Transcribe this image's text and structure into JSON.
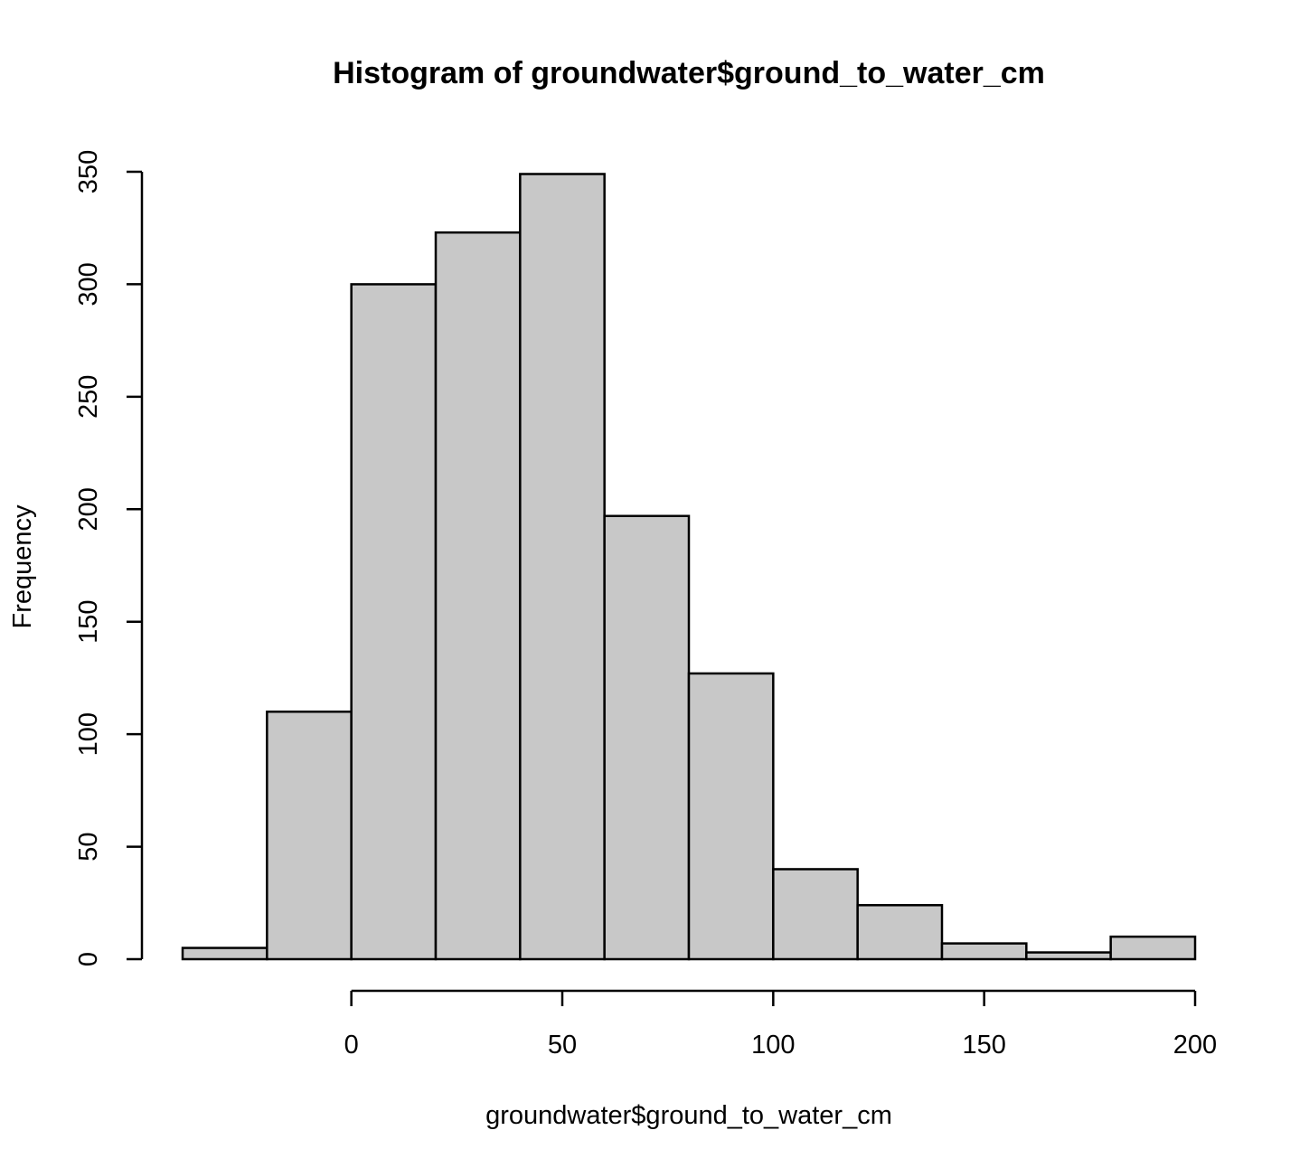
{
  "chart_data": {
    "type": "bar",
    "title": "Histogram of groundwater$ground_to_water_cm",
    "xlabel": "groundwater$ground_to_water_cm",
    "ylabel": "Frequency",
    "bins": [
      {
        "from": -40,
        "to": -20,
        "count": 5
      },
      {
        "from": -20,
        "to": 0,
        "count": 110
      },
      {
        "from": 0,
        "to": 20,
        "count": 300
      },
      {
        "from": 20,
        "to": 40,
        "count": 323
      },
      {
        "from": 40,
        "to": 60,
        "count": 349
      },
      {
        "from": 60,
        "to": 80,
        "count": 197
      },
      {
        "from": 80,
        "to": 100,
        "count": 127
      },
      {
        "from": 100,
        "to": 120,
        "count": 40
      },
      {
        "from": 120,
        "to": 140,
        "count": 24
      },
      {
        "from": 140,
        "to": 160,
        "count": 7
      },
      {
        "from": 160,
        "to": 180,
        "count": 3
      },
      {
        "from": 180,
        "to": 200,
        "count": 10
      }
    ],
    "xlim": [
      -40,
      200
    ],
    "ylim": [
      0,
      350
    ],
    "x_ticks": [
      0,
      50,
      100,
      150,
      200
    ],
    "y_ticks": [
      0,
      50,
      100,
      150,
      200,
      250,
      300,
      350
    ],
    "grid": false,
    "bar_color": "#c8c8c8",
    "edge_color": "#000000"
  }
}
